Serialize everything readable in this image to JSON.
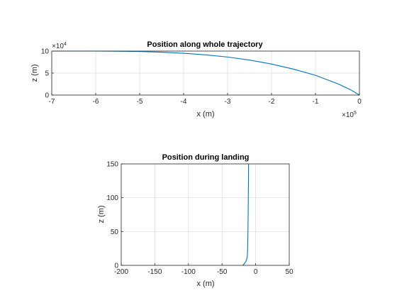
{
  "chart_data": [
    {
      "type": "line",
      "title": "Position along whole trajectory",
      "xlabel": "x (m)",
      "ylabel": "z (m)",
      "xlim": [
        -7,
        0
      ],
      "ylim": [
        0,
        10
      ],
      "x_multiplier": {
        "base": "×10",
        "exp": "5"
      },
      "y_multiplier": {
        "base": "×10",
        "exp": "4"
      },
      "xticks": [
        -7,
        -6,
        -5,
        -4,
        -3,
        -2,
        -1,
        0
      ],
      "yticks": [
        0,
        5,
        10
      ],
      "grid": true,
      "series": [
        {
          "color": "#0072bd",
          "x": [
            -7.0,
            -6.5,
            -6.0,
            -5.5,
            -5.0,
            -4.5,
            -4.0,
            -3.5,
            -3.0,
            -2.5,
            -2.0,
            -1.5,
            -1.0,
            -0.5,
            -0.2,
            0.0
          ],
          "y": [
            10.0,
            10.0,
            10.0,
            9.97,
            9.9,
            9.75,
            9.5,
            9.15,
            8.65,
            7.95,
            7.05,
            5.9,
            4.5,
            2.6,
            1.2,
            0.0
          ]
        }
      ]
    },
    {
      "type": "line",
      "title": "Position during landing",
      "xlabel": "x (m)",
      "ylabel": "z (m)",
      "xlim": [
        -200,
        50
      ],
      "ylim": [
        0,
        150
      ],
      "xticks": [
        -200,
        -150,
        -100,
        -50,
        0,
        50
      ],
      "yticks": [
        0,
        50,
        100,
        150
      ],
      "grid": true,
      "series": [
        {
          "color": "#0072bd",
          "x": [
            -10.5,
            -10.7,
            -11.0,
            -11.3,
            -11.6,
            -11.9,
            -12.3,
            -13.0,
            -14.5,
            -16.5,
            -18.0,
            -19.0
          ],
          "y": [
            150,
            120,
            90,
            60,
            40,
            25,
            15,
            10,
            6,
            3,
            1,
            0
          ]
        }
      ]
    }
  ]
}
